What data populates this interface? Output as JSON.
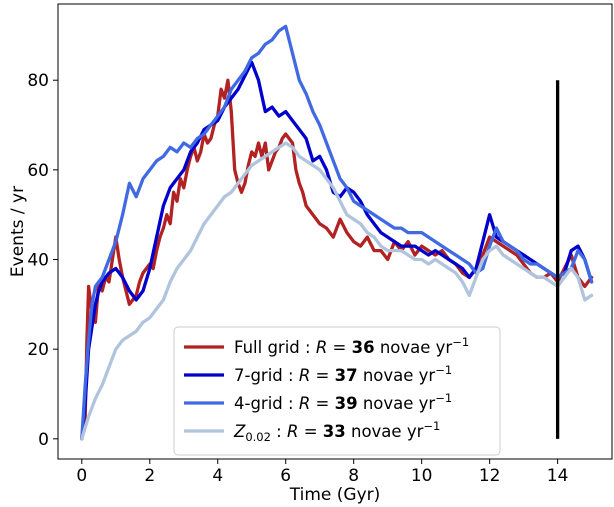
{
  "chart_data": {
    "type": "line",
    "title": "",
    "xlabel": "Time (Gyr)",
    "ylabel": "Events / yr",
    "xlim": [
      -0.7,
      15.6
    ],
    "ylim": [
      -4.5,
      97
    ],
    "xticks": [
      0,
      2,
      4,
      6,
      8,
      10,
      12,
      14
    ],
    "yticks": [
      0,
      20,
      40,
      60,
      80
    ],
    "grid": false,
    "legend_position": "lower-center",
    "series": [
      {
        "legend": {
          "prefix": "Full grid : ",
          "var": "R",
          "eq": " = ",
          "value": "36",
          "unit": " novae yr",
          "sup": "−1"
        },
        "color": "#b22222",
        "x": [
          0.0,
          0.1,
          0.15,
          0.2,
          0.3,
          0.4,
          0.5,
          0.6,
          0.7,
          0.8,
          0.9,
          1.0,
          1.1,
          1.2,
          1.3,
          1.4,
          1.5,
          1.6,
          1.7,
          1.8,
          1.9,
          2.0,
          2.1,
          2.2,
          2.3,
          2.4,
          2.5,
          2.6,
          2.7,
          2.8,
          2.9,
          3.0,
          3.1,
          3.2,
          3.3,
          3.4,
          3.5,
          3.6,
          3.7,
          3.8,
          3.9,
          4.0,
          4.1,
          4.2,
          4.3,
          4.4,
          4.5,
          4.6,
          4.7,
          4.8,
          4.9,
          5.0,
          5.1,
          5.2,
          5.3,
          5.4,
          5.5,
          5.6,
          5.7,
          5.8,
          5.9,
          6.0,
          6.1,
          6.2,
          6.3,
          6.4,
          6.5,
          6.6,
          6.8,
          7.0,
          7.2,
          7.4,
          7.6,
          7.8,
          8.0,
          8.2,
          8.4,
          8.6,
          8.8,
          9.0,
          9.2,
          9.4,
          9.6,
          9.8,
          10.0,
          10.2,
          10.4,
          10.6,
          10.8,
          11.0,
          11.2,
          11.4,
          11.6,
          11.8,
          12.0,
          12.2,
          12.4,
          12.6,
          12.8,
          13.0,
          13.2,
          13.4,
          13.6,
          13.8,
          14.0,
          14.2,
          14.4,
          14.6,
          14.8,
          15.0
        ],
        "y": [
          0,
          5,
          22,
          34,
          28,
          26,
          35,
          33,
          36,
          35,
          40,
          45,
          40,
          36,
          33,
          30,
          31,
          32,
          35,
          37,
          38,
          39,
          38,
          42,
          45,
          47,
          50,
          48,
          55,
          53,
          58,
          56,
          60,
          63,
          65,
          62,
          64,
          68,
          66,
          67,
          70,
          72,
          78,
          76,
          80,
          73,
          60,
          57,
          55,
          57,
          61,
          64,
          63,
          66,
          63,
          66,
          60,
          62,
          64,
          65,
          67,
          68,
          67,
          66,
          60,
          57,
          55,
          52,
          50,
          48,
          47,
          45,
          49,
          46,
          44,
          43,
          45,
          42,
          42,
          40,
          44,
          42,
          44,
          41,
          43,
          42,
          41,
          42,
          40,
          39,
          37,
          36,
          38,
          41,
          45,
          44,
          43,
          42,
          41,
          39,
          37,
          36,
          36,
          37,
          35,
          38,
          41,
          36,
          34,
          36
        ]
      },
      {
        "legend": {
          "prefix": "7-grid : ",
          "var": "R",
          "eq": " = ",
          "value": "37",
          "unit": " novae yr",
          "sup": "−1"
        },
        "color": "#0000cd",
        "x": [
          0.0,
          0.1,
          0.2,
          0.3,
          0.4,
          0.5,
          0.6,
          0.8,
          1.0,
          1.2,
          1.4,
          1.6,
          1.8,
          2.0,
          2.2,
          2.4,
          2.6,
          2.8,
          3.0,
          3.2,
          3.4,
          3.6,
          3.8,
          4.0,
          4.2,
          4.4,
          4.6,
          4.8,
          5.0,
          5.2,
          5.4,
          5.6,
          5.8,
          6.0,
          6.2,
          6.4,
          6.6,
          6.8,
          7.0,
          7.2,
          7.4,
          7.6,
          7.8,
          8.0,
          8.2,
          8.4,
          8.6,
          8.8,
          9.0,
          9.2,
          9.4,
          9.6,
          9.8,
          10.0,
          10.2,
          10.4,
          10.6,
          10.8,
          11.0,
          11.2,
          11.4,
          11.6,
          11.8,
          12.0,
          12.2,
          12.4,
          12.6,
          12.8,
          13.0,
          13.2,
          13.4,
          13.6,
          13.8,
          14.0,
          14.2,
          14.4,
          14.6,
          14.8,
          15.0
        ],
        "y": [
          0,
          8,
          20,
          25,
          30,
          33,
          35,
          37,
          38,
          36,
          33,
          31,
          33,
          38,
          45,
          52,
          56,
          58,
          60,
          64,
          66,
          69,
          70,
          71,
          74,
          76,
          78,
          81,
          84,
          80,
          73,
          74,
          72,
          73,
          71,
          69,
          67,
          62,
          63,
          60,
          55,
          54,
          56,
          55,
          53,
          50,
          48,
          46,
          45,
          44,
          43,
          43,
          43,
          42,
          41,
          42,
          41,
          40,
          39,
          38,
          36,
          38,
          44,
          50,
          45,
          44,
          43,
          42,
          41,
          40,
          39,
          38,
          37,
          36,
          37,
          42,
          43,
          40,
          35
        ]
      },
      {
        "legend": {
          "prefix": "4-grid : ",
          "var": "R",
          "eq": " = ",
          "value": "39",
          "unit": " novae yr",
          "sup": "−1"
        },
        "color": "#4169e1",
        "x": [
          0.0,
          0.1,
          0.2,
          0.3,
          0.4,
          0.6,
          0.8,
          1.0,
          1.2,
          1.4,
          1.6,
          1.8,
          2.0,
          2.2,
          2.4,
          2.6,
          2.8,
          3.0,
          3.2,
          3.4,
          3.6,
          3.8,
          4.0,
          4.2,
          4.4,
          4.6,
          4.8,
          5.0,
          5.2,
          5.4,
          5.6,
          5.8,
          6.0,
          6.2,
          6.4,
          6.6,
          6.8,
          7.0,
          7.2,
          7.4,
          7.6,
          7.8,
          8.0,
          8.2,
          8.4,
          8.6,
          8.8,
          9.0,
          9.2,
          9.4,
          9.6,
          9.8,
          10.0,
          10.2,
          10.4,
          10.6,
          10.8,
          11.0,
          11.2,
          11.4,
          11.6,
          11.8,
          12.0,
          12.2,
          12.4,
          12.6,
          12.8,
          13.0,
          13.2,
          13.4,
          13.6,
          13.8,
          14.0,
          14.2,
          14.4,
          14.6,
          14.8,
          15.0
        ],
        "y": [
          0,
          12,
          22,
          30,
          34,
          36,
          40,
          44,
          50,
          57,
          54,
          58,
          60,
          62,
          63,
          65,
          64,
          66,
          65,
          67,
          68,
          70,
          72,
          74,
          78,
          80,
          82,
          85,
          86,
          88,
          89,
          91,
          92,
          86,
          80,
          77,
          73,
          70,
          66,
          62,
          58,
          56,
          53,
          52,
          51,
          50,
          49,
          48,
          47,
          47,
          46,
          46,
          46,
          45,
          44,
          43,
          42,
          41,
          40,
          39,
          37,
          38,
          43,
          47,
          44,
          43,
          42,
          40,
          39,
          39,
          38,
          37,
          36,
          37,
          38,
          42,
          40,
          35
        ]
      },
      {
        "legend": {
          "prefix": "",
          "var": "Z",
          "sub": "0.02",
          "eq": " : ",
          "var2": "R",
          "eq2": " = ",
          "value": "33",
          "unit": " novae yr",
          "sup": "−1"
        },
        "color": "#b0c4de",
        "x": [
          0.0,
          0.2,
          0.4,
          0.6,
          0.8,
          1.0,
          1.2,
          1.4,
          1.6,
          1.8,
          2.0,
          2.2,
          2.4,
          2.6,
          2.8,
          3.0,
          3.2,
          3.4,
          3.6,
          3.8,
          4.0,
          4.2,
          4.4,
          4.6,
          4.8,
          5.0,
          5.2,
          5.4,
          5.6,
          5.8,
          6.0,
          6.2,
          6.4,
          6.6,
          6.8,
          7.0,
          7.2,
          7.4,
          7.6,
          7.8,
          8.0,
          8.2,
          8.4,
          8.6,
          8.8,
          9.0,
          9.2,
          9.4,
          9.6,
          9.8,
          10.0,
          10.2,
          10.4,
          10.6,
          10.8,
          11.0,
          11.2,
          11.4,
          11.6,
          11.8,
          12.0,
          12.2,
          12.4,
          12.6,
          12.8,
          13.0,
          13.2,
          13.4,
          13.6,
          13.8,
          14.0,
          14.2,
          14.4,
          14.6,
          14.8,
          15.0
        ],
        "y": [
          0,
          5,
          9,
          12,
          16,
          20,
          22,
          23,
          24,
          26,
          27,
          29,
          31,
          35,
          38,
          40,
          42,
          45,
          48,
          50,
          52,
          54,
          55,
          57,
          59,
          61,
          62,
          63,
          64,
          65,
          66,
          65,
          63,
          62,
          61,
          60,
          58,
          56,
          53,
          50,
          49,
          48,
          46,
          45,
          43,
          42,
          42,
          42,
          41,
          40,
          40,
          39,
          40,
          39,
          38,
          37,
          35,
          32,
          36,
          40,
          42,
          43,
          41,
          40,
          39,
          38,
          37,
          36,
          36,
          35,
          34,
          36,
          38,
          36,
          31,
          32
        ]
      }
    ],
    "annotations": [
      {
        "type": "vertical-line",
        "x": 14,
        "y_from": 0,
        "y_to": 80,
        "color": "#000000"
      }
    ]
  }
}
